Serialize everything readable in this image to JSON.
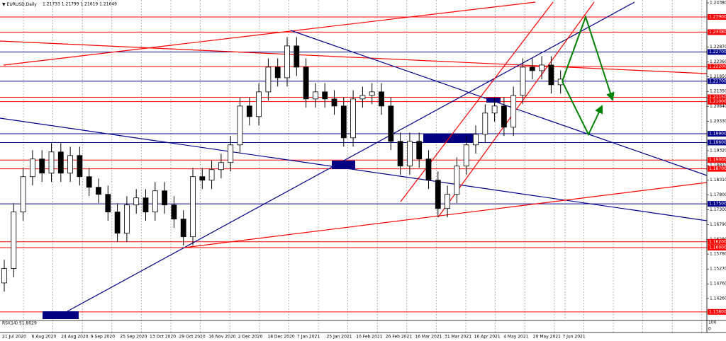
{
  "chart_data": {
    "type": "candlestick",
    "title": "EURUSD,Daily",
    "subtitle": "1.21733 1.21799 1.21619 1.21649",
    "indicator": "RSI(14) 51.8029",
    "indicator_ticks": [
      100,
      0
    ],
    "up_color": "#ffffff",
    "down_color": "#000000",
    "wick_color": "#000000",
    "ylim": [
      1.1353,
      1.2448
    ],
    "yticks": [
      {
        "value": 1.2438,
        "label": "1.24380"
      },
      {
        "value": 1.2287,
        "label": "1.22870"
      },
      {
        "value": 1.2236,
        "label": "1.22360"
      },
      {
        "value": 1.2185,
        "label": "1.21850"
      },
      {
        "value": 1.2135,
        "label": "1.21350"
      },
      {
        "value": 1.2084,
        "label": "1.20840"
      },
      {
        "value": 1.2033,
        "label": "1.20330"
      },
      {
        "value": 1.1932,
        "label": "1.19320"
      },
      {
        "value": 1.1881,
        "label": "1.18810"
      },
      {
        "value": 1.1831,
        "label": "1.18310"
      },
      {
        "value": 1.178,
        "label": "1.17800"
      },
      {
        "value": 1.173,
        "label": "1.17300"
      },
      {
        "value": 1.1679,
        "label": "1.16790"
      },
      {
        "value": 1.1628,
        "label": "1.16280"
      },
      {
        "value": 1.1578,
        "label": "1.15780"
      },
      {
        "value": 1.1527,
        "label": "1.15270"
      },
      {
        "value": 1.1476,
        "label": "1.14760"
      },
      {
        "value": 1.1426,
        "label": "1.14260"
      }
    ],
    "levels": [
      {
        "value": 1.239,
        "label": "1.23900",
        "color": "#ff0000"
      },
      {
        "value": 1.2338,
        "label": "1.23380",
        "color": "#ff0000"
      },
      {
        "value": 1.227,
        "label": "1.22700",
        "color": "#00008b"
      },
      {
        "value": 1.222,
        "label": "1.22200",
        "color": "#ff0000"
      },
      {
        "value": 1.217,
        "label": "1.21700",
        "color": "#00008b"
      },
      {
        "value": 1.2115,
        "label": "1.21150",
        "color": "#ff0000"
      },
      {
        "value": 1.21,
        "label": "1.21000",
        "color": "#ff0000"
      },
      {
        "value": 1.199,
        "label": "1.19900",
        "color": "#00008b"
      },
      {
        "value": 1.196,
        "label": "1.19600",
        "color": "#00008b"
      },
      {
        "value": 1.19,
        "label": "1.19000",
        "color": "#ff0000"
      },
      {
        "value": 1.187,
        "label": "1.18700",
        "color": "#ff0000"
      },
      {
        "value": 1.175,
        "label": "1.17500",
        "color": "#00008b"
      },
      {
        "value": 1.162,
        "label": "1.16200",
        "color": "#ff0000"
      },
      {
        "value": 1.16,
        "label": "1.16000",
        "color": "#ff0000"
      },
      {
        "value": 1.138,
        "label": "1.13800",
        "color": "#ff0000"
      }
    ],
    "x_labels": [
      "21 Jul 2020",
      "6 Aug 2020",
      "24 Aug 2020",
      "9 Sep 2020",
      "25 Sep 2020",
      "13 Oct 2020",
      "29 Oct 2020",
      "16 Nov 2020",
      "2 Dec 2020",
      "18 Dec 2020",
      "7 Jan 2021",
      "25 Jan 2021",
      "10 Feb 2021",
      "26 Feb 2021",
      "16 Mar 2021",
      "31 Mar 2021",
      "16 Apr 2021",
      "4 May 2021",
      "20 May 2021",
      "7 Jun 2021"
    ],
    "open": [
      1.14792,
      1.15284,
      1.1722,
      1.1843,
      1.19035,
      1.18551,
      1.19277,
      1.18551,
      1.19156,
      1.1843,
      1.18067,
      1.17825,
      1.1722,
      1.16494,
      1.17462,
      1.17704,
      1.1722,
      1.17946,
      1.17462,
      1.16978,
      1.16373,
      1.1843,
      1.18309,
      1.18672,
      1.18914,
      1.19519,
      1.2085,
      1.20487,
      1.21334,
      1.22181,
      1.21818,
      1.22907,
      1.22181,
      1.21092,
      1.21334,
      1.21092,
      1.2085,
      1.19761,
      1.21092,
      1.21213,
      1.21334,
      1.2085,
      1.1964,
      1.18793,
      1.1964,
      1.19035,
      1.18309,
      1.17341,
      1.17825,
      1.18793,
      1.19519,
      1.19882,
      1.20608,
      1.2085,
      1.20124,
      1.21213,
      1.22181,
      1.2206,
      1.22254,
      1.21576
    ],
    "high": [
      1.15584,
      1.1752,
      1.1873,
      1.19335,
      1.19335,
      1.19577,
      1.19577,
      1.19456,
      1.19456,
      1.1873,
      1.18367,
      1.18125,
      1.1752,
      1.17762,
      1.18004,
      1.18004,
      1.18246,
      1.18246,
      1.17762,
      1.17278,
      1.1873,
      1.1873,
      1.18972,
      1.19214,
      1.19819,
      1.2115,
      1.2115,
      1.21634,
      1.22481,
      1.22481,
      1.23207,
      1.23207,
      1.22481,
      1.21634,
      1.21634,
      1.21392,
      1.2115,
      1.21392,
      1.21513,
      1.21634,
      1.21634,
      1.2115,
      1.1994,
      1.1994,
      1.1994,
      1.19335,
      1.18609,
      1.18125,
      1.19093,
      1.19819,
      1.20182,
      1.20908,
      1.2115,
      1.2115,
      1.21513,
      1.22481,
      1.22481,
      1.22554,
      1.22554,
      1.2207
    ],
    "low": [
      1.14492,
      1.14984,
      1.1692,
      1.1813,
      1.18251,
      1.18251,
      1.18251,
      1.18251,
      1.1813,
      1.17767,
      1.17525,
      1.1692,
      1.16194,
      1.16194,
      1.17162,
      1.1692,
      1.1692,
      1.17162,
      1.16678,
      1.16073,
      1.16073,
      1.18009,
      1.18009,
      1.18372,
      1.18614,
      1.19219,
      1.20187,
      1.20187,
      1.21034,
      1.21518,
      1.21518,
      1.21881,
      1.20792,
      1.20792,
      1.20792,
      1.2055,
      1.19461,
      1.19461,
      1.20792,
      1.20913,
      1.2055,
      1.1934,
      1.18493,
      1.18493,
      1.18735,
      1.18009,
      1.17041,
      1.17041,
      1.17525,
      1.18493,
      1.19219,
      1.19582,
      1.20308,
      1.19824,
      1.19824,
      1.20913,
      1.2176,
      1.2176,
      1.21276,
      1.21276
    ],
    "close": [
      1.15284,
      1.1722,
      1.1843,
      1.19035,
      1.18551,
      1.19277,
      1.18551,
      1.19156,
      1.1843,
      1.18067,
      1.17825,
      1.1722,
      1.16494,
      1.17462,
      1.17704,
      1.1722,
      1.17946,
      1.17462,
      1.16978,
      1.16373,
      1.1843,
      1.18309,
      1.18672,
      1.18914,
      1.19519,
      1.2085,
      1.20487,
      1.21334,
      1.22181,
      1.21818,
      1.22907,
      1.22181,
      1.21092,
      1.21334,
      1.21092,
      1.2085,
      1.19761,
      1.21092,
      1.21213,
      1.21334,
      1.2085,
      1.1964,
      1.18793,
      1.1964,
      1.19035,
      1.18309,
      1.17341,
      1.17825,
      1.18793,
      1.19519,
      1.19882,
      1.20608,
      1.2085,
      1.20124,
      1.21213,
      1.22181,
      1.2206,
      1.22254,
      1.21576,
      1.2177
    ]
  }
}
